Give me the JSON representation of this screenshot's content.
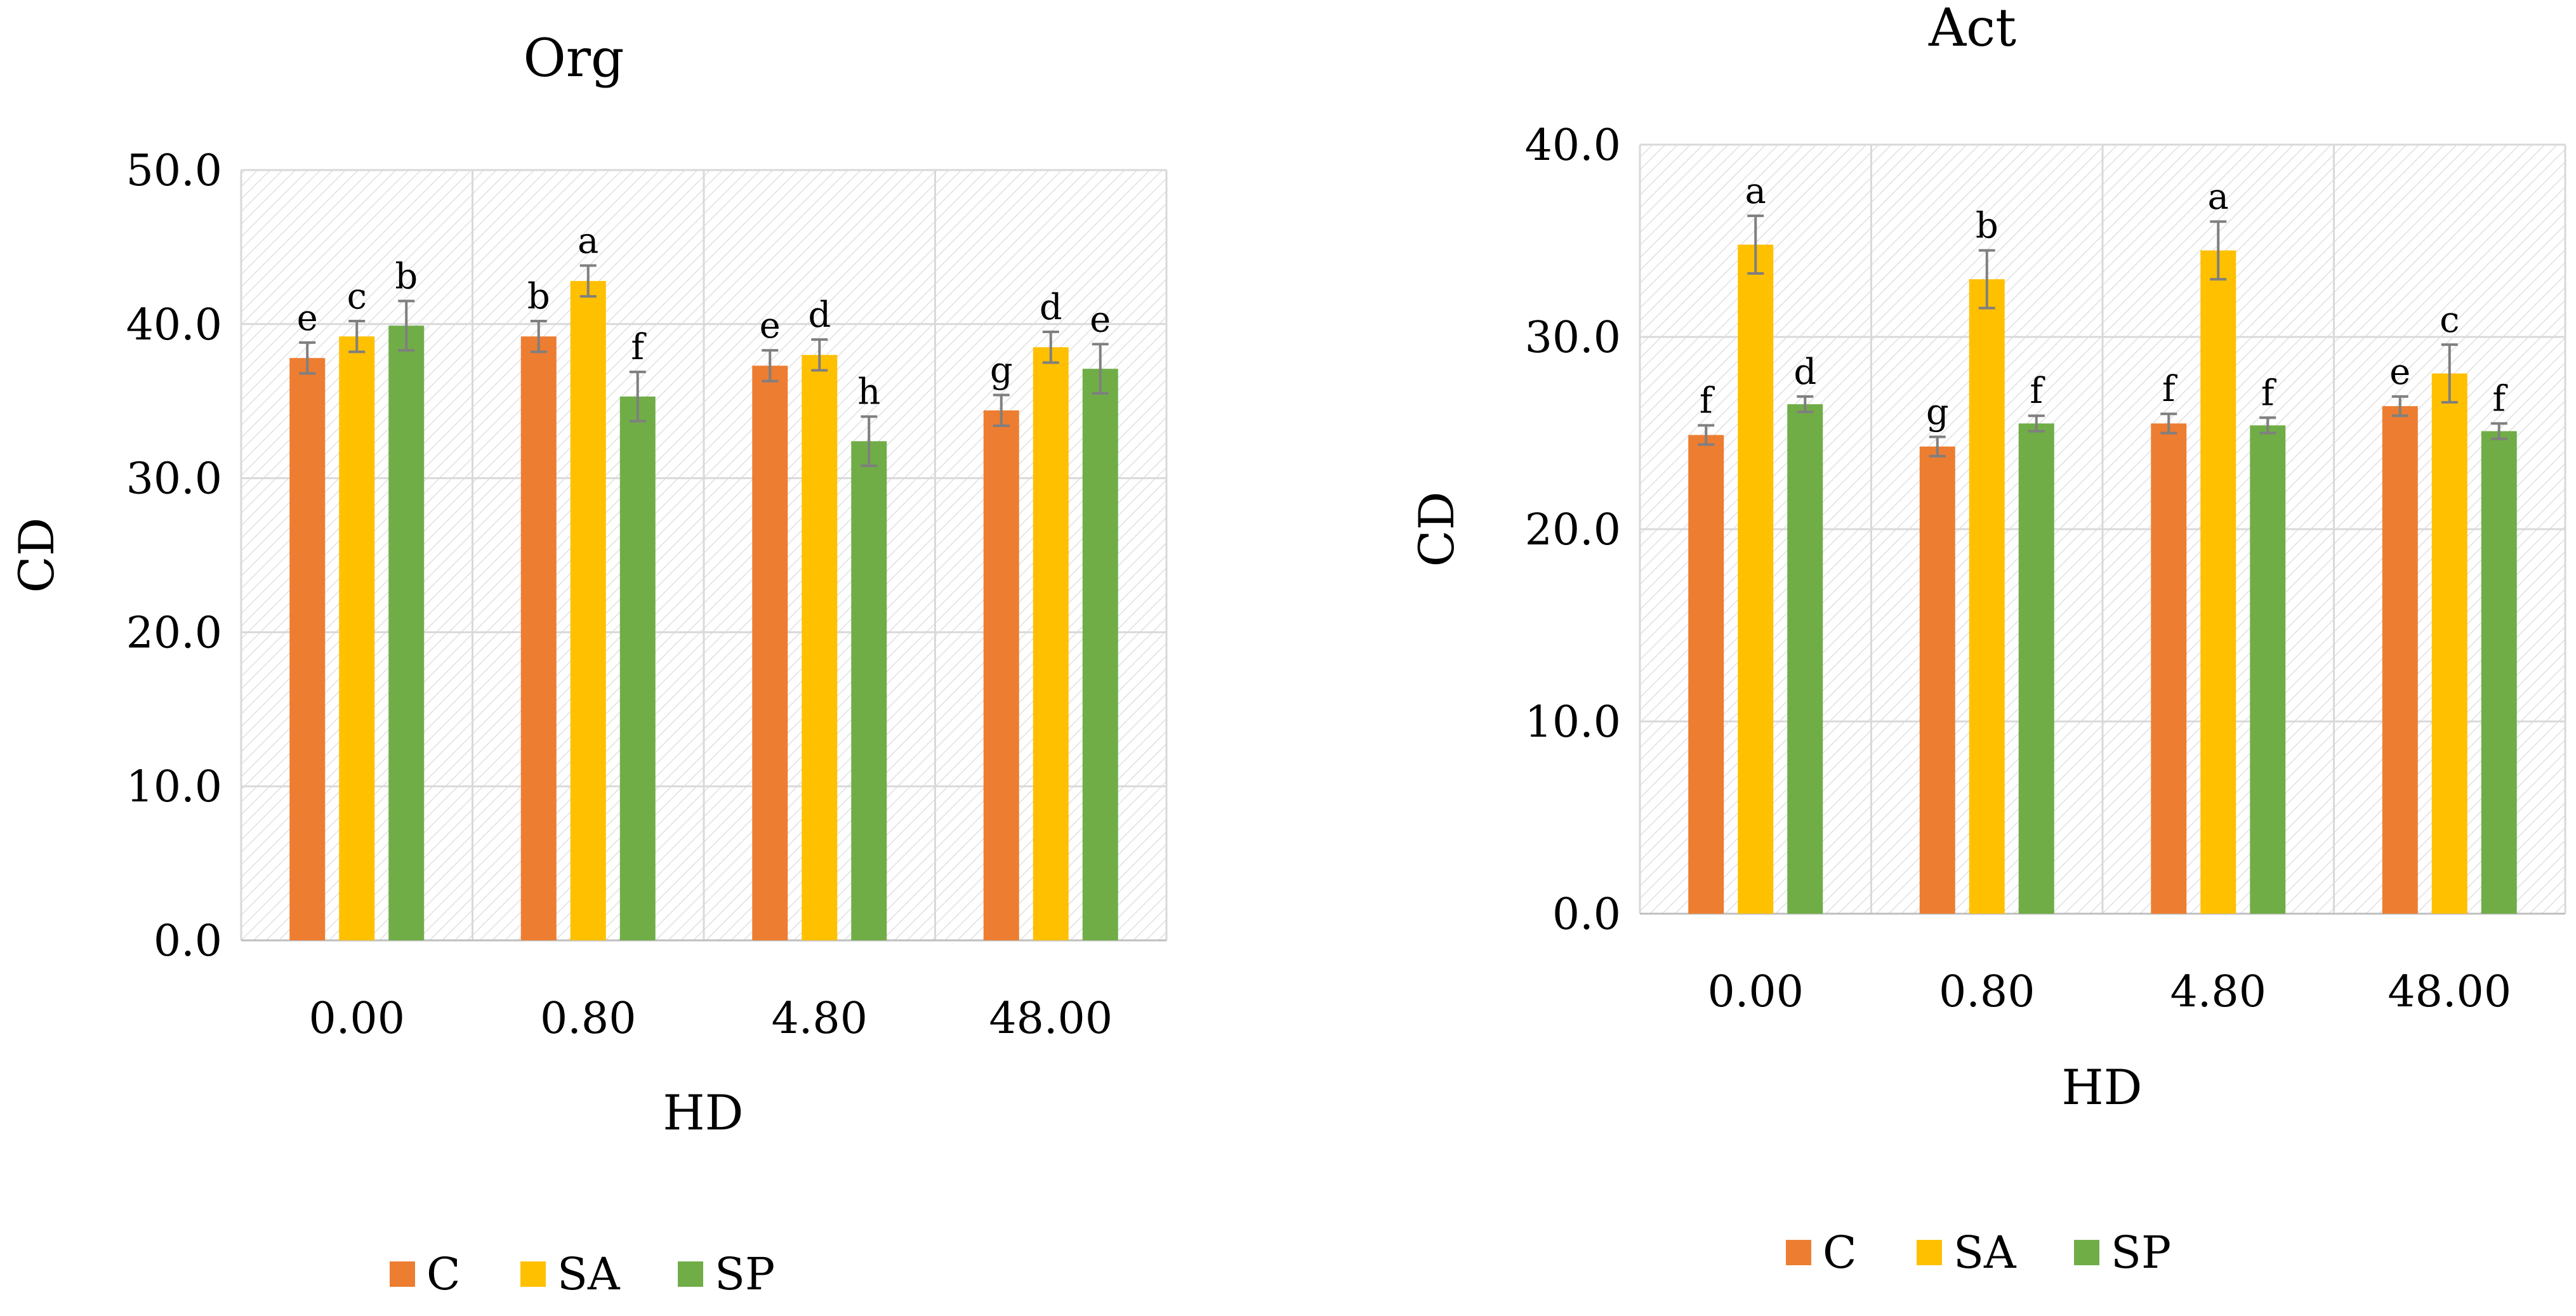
{
  "chart_data": [
    {
      "type": "bar",
      "title": "Org",
      "xlabel": "HD",
      "ylabel": "CD",
      "ylim": [
        0,
        50
      ],
      "y_ticks": [
        "0.0",
        "10.0",
        "20.0",
        "30.0",
        "40.0",
        "50.0"
      ],
      "categories": [
        "0.00",
        "0.80",
        "4.80",
        "48.00"
      ],
      "grid": true,
      "legend_position": "bottom-left",
      "series": [
        {
          "name": "C",
          "color": "#ED7D31",
          "values": [
            37.8,
            39.2,
            37.3,
            34.4
          ],
          "errors": [
            1.0,
            1.0,
            1.0,
            1.0
          ],
          "letters": [
            "e",
            "b",
            "e",
            "g"
          ]
        },
        {
          "name": "SA",
          "color": "#FFC000",
          "values": [
            39.2,
            42.8,
            38.0,
            38.5
          ],
          "errors": [
            1.0,
            1.0,
            1.0,
            1.0
          ],
          "letters": [
            "c",
            "a",
            "d",
            "d"
          ]
        },
        {
          "name": "SP",
          "color": "#70AD47",
          "values": [
            39.9,
            35.3,
            32.4,
            37.1
          ],
          "errors": [
            1.6,
            1.6,
            1.6,
            1.6
          ],
          "letters": [
            "b",
            "f",
            "h",
            "e"
          ]
        }
      ]
    },
    {
      "type": "bar",
      "title": "Act",
      "xlabel": "HD",
      "ylabel": "CD",
      "ylim": [
        0,
        40
      ],
      "y_ticks": [
        "0.0",
        "10.0",
        "20.0",
        "30.0",
        "40.0"
      ],
      "categories": [
        "0.00",
        "0.80",
        "4.80",
        "48.00"
      ],
      "grid": true,
      "legend_position": "bottom-center",
      "series": [
        {
          "name": "C",
          "color": "#ED7D31",
          "values": [
            24.9,
            24.3,
            25.5,
            26.4
          ],
          "errors": [
            0.5,
            0.5,
            0.5,
            0.5
          ],
          "letters": [
            "f",
            "g",
            "f",
            "e"
          ]
        },
        {
          "name": "SA",
          "color": "#FFC000",
          "values": [
            34.8,
            33.0,
            34.5,
            28.1
          ],
          "errors": [
            1.5,
            1.5,
            1.5,
            1.5
          ],
          "letters": [
            "a",
            "b",
            "a",
            "c"
          ]
        },
        {
          "name": "SP",
          "color": "#70AD47",
          "values": [
            26.5,
            25.5,
            25.4,
            25.1
          ],
          "errors": [
            0.4,
            0.4,
            0.4,
            0.4
          ],
          "letters": [
            "d",
            "f",
            "f",
            "f"
          ]
        }
      ]
    }
  ]
}
